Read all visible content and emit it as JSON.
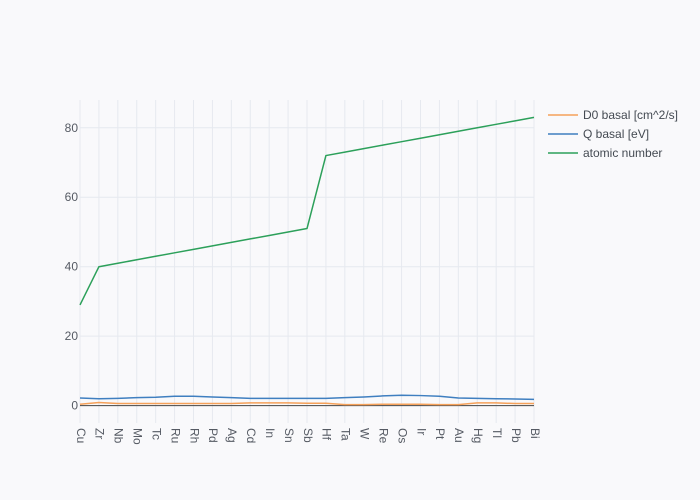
{
  "chart_data": {
    "type": "line",
    "title": "",
    "xlabel": "",
    "ylabel": "",
    "categories": [
      "Cu",
      "Zr",
      "Nb",
      "Mo",
      "Tc",
      "Ru",
      "Rh",
      "Pd",
      "Ag",
      "Cd",
      "In",
      "Sn",
      "Sb",
      "Hf",
      "Ta",
      "W",
      "Re",
      "Os",
      "Ir",
      "Pt",
      "Au",
      "Hg",
      "Tl",
      "Pb",
      "Bi"
    ],
    "ylim": [
      -5,
      88
    ],
    "yticks": [
      0,
      20,
      40,
      60,
      80
    ],
    "grid": true,
    "legend_position": "top-right",
    "series": [
      {
        "name": "D0 basal [cm^2/s]",
        "color": "#f5a15a",
        "values": [
          0.4,
          0.9,
          0.6,
          0.6,
          0.6,
          0.6,
          0.6,
          0.6,
          0.6,
          0.8,
          0.8,
          0.8,
          0.7,
          0.7,
          0.3,
          0.3,
          0.4,
          0.4,
          0.4,
          0.3,
          0.3,
          0.8,
          0.8,
          0.6,
          0.6
        ]
      },
      {
        "name": "Q basal [eV]",
        "color": "#3f7fc0",
        "values": [
          2.2,
          2.0,
          2.1,
          2.3,
          2.4,
          2.7,
          2.7,
          2.5,
          2.3,
          2.1,
          2.1,
          2.1,
          2.1,
          2.1,
          2.3,
          2.5,
          2.8,
          3.0,
          2.9,
          2.7,
          2.2,
          2.1,
          2.0,
          1.9,
          1.8
        ]
      },
      {
        "name": "atomic number",
        "color": "#2ca05a",
        "values": [
          29,
          40,
          41,
          42,
          43,
          44,
          45,
          46,
          47,
          48,
          49,
          50,
          51,
          72,
          73,
          74,
          75,
          76,
          77,
          78,
          79,
          80,
          81,
          82,
          83
        ]
      }
    ]
  }
}
